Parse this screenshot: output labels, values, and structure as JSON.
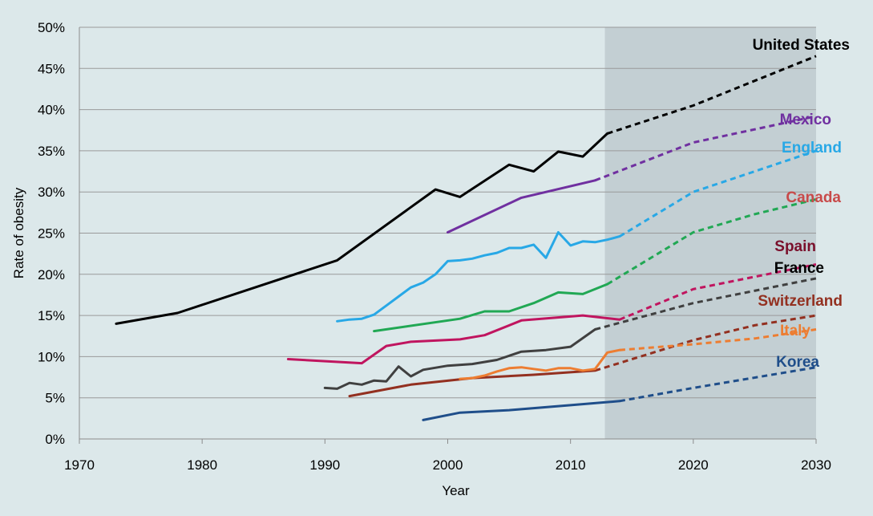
{
  "chart_data": {
    "type": "line",
    "xlabel": "Year",
    "ylabel": "Rate of obesity",
    "xlim": [
      1970,
      2030
    ],
    "ylim": [
      0,
      50
    ],
    "x_ticks": [
      "1970",
      "1980",
      "1990",
      "2000",
      "2010",
      "2020",
      "2030"
    ],
    "y_ticks": [
      "0%",
      "5%",
      "10%",
      "15%",
      "20%",
      "25%",
      "30%",
      "35%",
      "40%",
      "45%",
      "50%"
    ],
    "grid": "horizontal",
    "projection_region": {
      "x_start": 2012.8,
      "x_end": 2030,
      "color": "#c3cfd3"
    },
    "series": [
      {
        "name": "United States",
        "color": "#000000",
        "observed": [
          [
            1973,
            14.0
          ],
          [
            1978,
            15.3
          ],
          [
            1991,
            21.7
          ],
          [
            1999,
            30.3
          ],
          [
            2001,
            29.4
          ],
          [
            2005,
            33.3
          ],
          [
            2007,
            32.5
          ],
          [
            2009,
            34.9
          ],
          [
            2011,
            34.3
          ],
          [
            2013,
            37.1
          ]
        ],
        "projected": [
          [
            2013,
            37.1
          ],
          [
            2020,
            40.5
          ],
          [
            2030,
            46.5
          ]
        ]
      },
      {
        "name": "Mexico",
        "color": "#7030a0",
        "observed": [
          [
            2000,
            25.1
          ],
          [
            2006,
            29.3
          ],
          [
            2012,
            31.4
          ]
        ],
        "projected": [
          [
            2012,
            31.4
          ],
          [
            2020,
            36.0
          ],
          [
            2030,
            39.2
          ]
        ]
      },
      {
        "name": "England",
        "color": "#28a8e6",
        "observed": [
          [
            1991,
            14.3
          ],
          [
            1992,
            14.5
          ],
          [
            1993,
            14.6
          ],
          [
            1994,
            15.1
          ],
          [
            1995,
            16.2
          ],
          [
            1996,
            17.3
          ],
          [
            1997,
            18.4
          ],
          [
            1998,
            19.0
          ],
          [
            1999,
            20.0
          ],
          [
            2000,
            21.6
          ],
          [
            2001,
            21.7
          ],
          [
            2002,
            21.9
          ],
          [
            2003,
            22.3
          ],
          [
            2004,
            22.6
          ],
          [
            2005,
            23.2
          ],
          [
            2006,
            23.2
          ],
          [
            2007,
            23.6
          ],
          [
            2008,
            22.0
          ],
          [
            2009,
            25.1
          ],
          [
            2010,
            23.5
          ],
          [
            2011,
            24.0
          ],
          [
            2012,
            23.9
          ],
          [
            2013,
            24.2
          ],
          [
            2014,
            24.6
          ]
        ],
        "projected": [
          [
            2014,
            24.6
          ],
          [
            2020,
            30.0
          ],
          [
            2030,
            35.0
          ]
        ]
      },
      {
        "name": "Canada",
        "color": "#21a854",
        "observed": [
          [
            1994,
            13.1
          ],
          [
            2001,
            14.6
          ],
          [
            2003,
            15.5
          ],
          [
            2005,
            15.5
          ],
          [
            2007,
            16.5
          ],
          [
            2009,
            17.8
          ],
          [
            2011,
            17.6
          ],
          [
            2013,
            18.8
          ]
        ],
        "projected": [
          [
            2013,
            18.8
          ],
          [
            2020,
            25.1
          ],
          [
            2025,
            27.3
          ],
          [
            2030,
            29.1
          ]
        ]
      },
      {
        "name": "Spain",
        "color": "#c0155f",
        "observed": [
          [
            1987,
            9.7
          ],
          [
            1993,
            9.2
          ],
          [
            1995,
            11.3
          ],
          [
            1997,
            11.8
          ],
          [
            2001,
            12.1
          ],
          [
            2003,
            12.6
          ],
          [
            2006,
            14.4
          ],
          [
            2011,
            15.0
          ],
          [
            2014,
            14.5
          ]
        ],
        "projected": [
          [
            2014,
            14.5
          ],
          [
            2020,
            18.2
          ],
          [
            2030,
            21.2
          ]
        ]
      },
      {
        "name": "France",
        "color": "#404040",
        "observed": [
          [
            1990,
            6.2
          ],
          [
            1991,
            6.1
          ],
          [
            1992,
            6.8
          ],
          [
            1993,
            6.6
          ],
          [
            1994,
            7.1
          ],
          [
            1995,
            7.0
          ],
          [
            1996,
            8.8
          ],
          [
            1997,
            7.6
          ],
          [
            1998,
            8.4
          ],
          [
            2000,
            8.9
          ],
          [
            2002,
            9.1
          ],
          [
            2004,
            9.6
          ],
          [
            2006,
            10.6
          ],
          [
            2008,
            10.8
          ],
          [
            2010,
            11.2
          ],
          [
            2012,
            13.3
          ]
        ],
        "projected": [
          [
            2012,
            13.3
          ],
          [
            2020,
            16.5
          ],
          [
            2030,
            19.5
          ]
        ]
      },
      {
        "name": "Switzerland",
        "color": "#933020",
        "observed": [
          [
            1992,
            5.2
          ],
          [
            1997,
            6.6
          ],
          [
            2002,
            7.4
          ],
          [
            2007,
            7.8
          ],
          [
            2012,
            8.3
          ]
        ],
        "projected": [
          [
            2012,
            8.3
          ],
          [
            2020,
            12.0
          ],
          [
            2025,
            13.8
          ],
          [
            2030,
            15.0
          ]
        ]
      },
      {
        "name": "Italy",
        "color": "#ed7d31",
        "observed": [
          [
            2001,
            7.3
          ],
          [
            2002,
            7.4
          ],
          [
            2003,
            7.7
          ],
          [
            2004,
            8.2
          ],
          [
            2005,
            8.6
          ],
          [
            2006,
            8.7
          ],
          [
            2007,
            8.5
          ],
          [
            2008,
            8.3
          ],
          [
            2009,
            8.6
          ],
          [
            2010,
            8.6
          ],
          [
            2011,
            8.3
          ],
          [
            2012,
            8.5
          ],
          [
            2013,
            10.5
          ],
          [
            2014,
            10.8
          ]
        ],
        "projected": [
          [
            2014,
            10.8
          ],
          [
            2020,
            11.5
          ],
          [
            2025,
            12.2
          ],
          [
            2030,
            13.3
          ]
        ]
      },
      {
        "name": "Korea",
        "color": "#1f4e8a",
        "observed": [
          [
            1998,
            2.3
          ],
          [
            2001,
            3.2
          ],
          [
            2005,
            3.5
          ],
          [
            2010,
            4.1
          ],
          [
            2014,
            4.6
          ]
        ],
        "projected": [
          [
            2014,
            4.6
          ],
          [
            2020,
            6.2
          ],
          [
            2030,
            8.7
          ]
        ]
      }
    ]
  }
}
